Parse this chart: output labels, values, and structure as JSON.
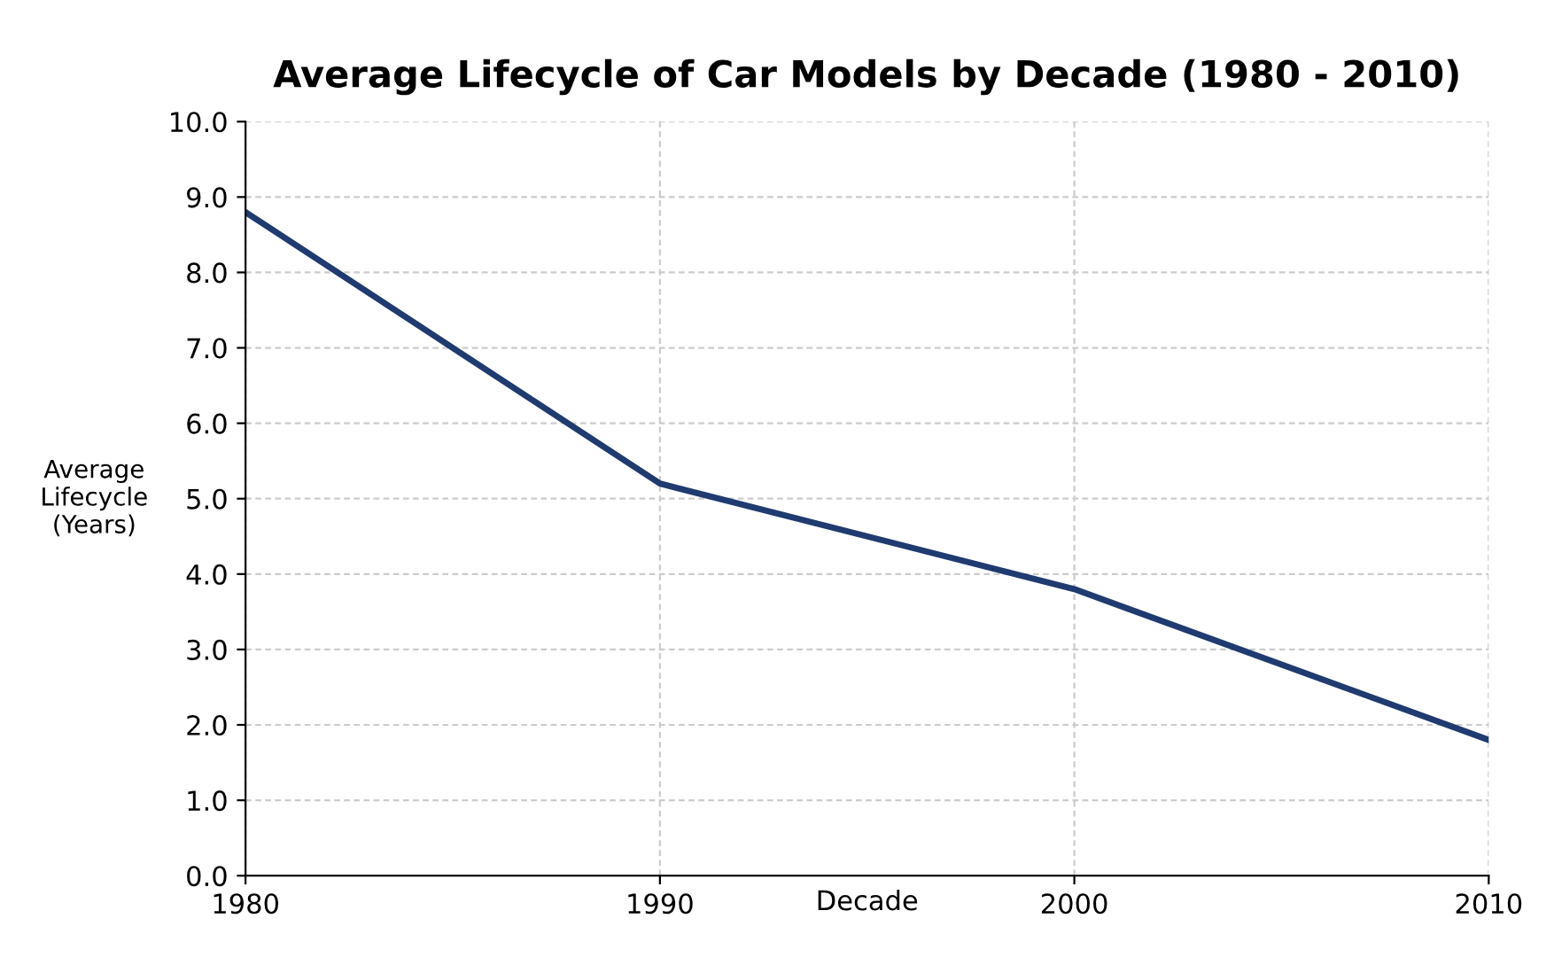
{
  "chart_data": {
    "type": "line",
    "title": "Average Lifecycle of Car Models by Decade (1980 - 2010)",
    "xlabel": "Decade",
    "ylabel": "Average\nLifecycle\n(Years)",
    "x": [
      1980,
      1990,
      2000,
      2010
    ],
    "series": [
      {
        "color": "#1f3b70",
        "values": [
          8.8,
          5.2,
          3.8,
          1.8
        ]
      }
    ],
    "xlim": [
      1980,
      2010
    ],
    "xticks": [
      1980,
      1990,
      2000,
      2010
    ],
    "ylim": [
      0,
      10
    ],
    "yticks": [
      {
        "value": 0,
        "label": "0.0"
      },
      {
        "value": 1,
        "label": "1.0"
      },
      {
        "value": 2,
        "label": "2.0"
      },
      {
        "value": 3,
        "label": "3.0"
      },
      {
        "value": 4,
        "label": "4.0"
      },
      {
        "value": 5,
        "label": "5.0"
      },
      {
        "value": 6,
        "label": "6.0"
      },
      {
        "value": 7,
        "label": "7.0"
      },
      {
        "value": 8,
        "label": "8.0"
      },
      {
        "value": 9,
        "label": "9.0"
      },
      {
        "value": 10,
        "label": "10.0"
      }
    ],
    "grid": true,
    "legend": false,
    "marker": "none",
    "line_style": "solid"
  }
}
